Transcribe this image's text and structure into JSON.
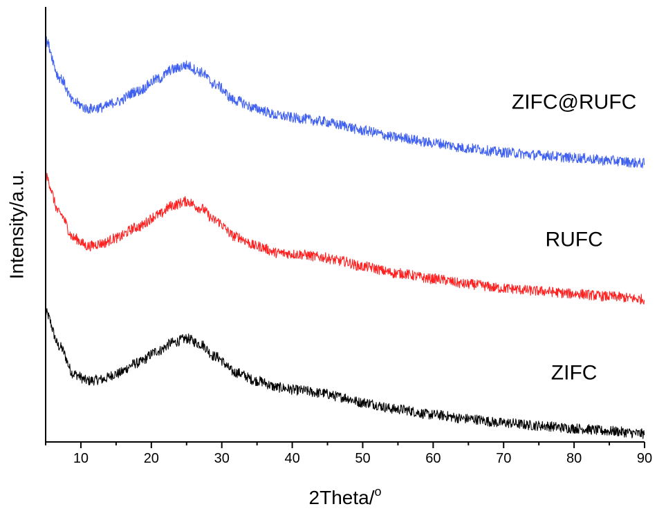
{
  "chart_data": {
    "type": "line",
    "title": "",
    "xlabel": "2Theta/",
    "xlabel_superscript": "o",
    "ylabel": "Intensity/a.u.",
    "xlim": [
      5,
      90
    ],
    "ylim": [
      0,
      3.2
    ],
    "x_ticks": [
      10,
      20,
      30,
      40,
      50,
      60,
      70,
      80,
      90
    ],
    "grid": false,
    "legend": "none",
    "series": [
      {
        "name": "ZIFC",
        "color": "#000000",
        "x": [
          5,
          7,
          9,
          11,
          13,
          15,
          18,
          21,
          23,
          25,
          27,
          29,
          32,
          35,
          38,
          41,
          44,
          47,
          50,
          55,
          60,
          65,
          70,
          75,
          80,
          85,
          90
        ],
        "y": [
          0.95,
          0.7,
          0.5,
          0.45,
          0.46,
          0.5,
          0.58,
          0.67,
          0.73,
          0.76,
          0.72,
          0.63,
          0.51,
          0.45,
          0.4,
          0.38,
          0.36,
          0.33,
          0.29,
          0.24,
          0.2,
          0.17,
          0.14,
          0.12,
          0.1,
          0.08,
          0.06
        ]
      },
      {
        "name": "RUFC",
        "color": "#ff2020",
        "x": [
          5,
          7,
          9,
          11,
          13,
          15,
          18,
          21,
          23,
          25,
          27,
          29,
          32,
          35,
          38,
          41,
          44,
          47,
          50,
          55,
          60,
          65,
          70,
          75,
          80,
          85,
          90
        ],
        "y": [
          1.95,
          1.68,
          1.5,
          1.44,
          1.46,
          1.5,
          1.58,
          1.67,
          1.74,
          1.77,
          1.72,
          1.63,
          1.51,
          1.44,
          1.39,
          1.38,
          1.36,
          1.33,
          1.29,
          1.24,
          1.2,
          1.16,
          1.13,
          1.11,
          1.09,
          1.07,
          1.05
        ]
      },
      {
        "name": "ZIFC@RUFC",
        "color": "#4060f0",
        "x": [
          5,
          7,
          9,
          11,
          13,
          15,
          18,
          21,
          23,
          25,
          27,
          29,
          32,
          35,
          38,
          41,
          44,
          47,
          50,
          55,
          60,
          65,
          70,
          75,
          80,
          85,
          90
        ],
        "y": [
          2.95,
          2.68,
          2.5,
          2.45,
          2.46,
          2.5,
          2.58,
          2.67,
          2.74,
          2.77,
          2.72,
          2.63,
          2.51,
          2.45,
          2.4,
          2.38,
          2.36,
          2.33,
          2.29,
          2.24,
          2.2,
          2.16,
          2.13,
          2.11,
          2.09,
          2.07,
          2.05
        ]
      }
    ],
    "annotations": [
      {
        "text": "ZIFC@RUFC",
        "x": 80,
        "y": 2.45
      },
      {
        "text": "RUFC",
        "x": 80,
        "y": 1.44
      },
      {
        "text": "ZIFC",
        "x": 80,
        "y": 0.46
      }
    ]
  }
}
